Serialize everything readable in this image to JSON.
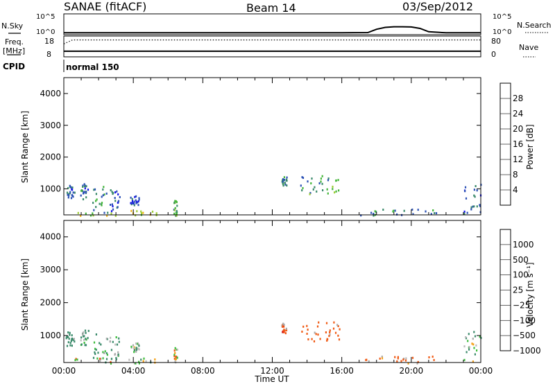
{
  "header": {
    "station": "SANAE (fitACF)",
    "beam": "Beam 14",
    "date": "03/Sep/2012"
  },
  "summary": {
    "nsky_label": "N.Sky",
    "nsearch_label": "N.Search",
    "freq_label": "Freq.",
    "freq_unit": "[MHz]",
    "nave_label": "Nave",
    "cpid_label": "CPID",
    "cpid_value": "normal 150",
    "noise_ticks": [
      "10^5",
      "10^0"
    ],
    "freq_ticks": [
      "18",
      "8"
    ],
    "nave_ticks": [
      "80",
      "0"
    ]
  },
  "colors": {
    "power": [
      "#1414e6",
      "#2a50b4",
      "#3a8a6a",
      "#44b63a",
      "#9ccc32",
      "#f0b414",
      "#f07a14",
      "#f01414"
    ],
    "velocity": [
      "#e61414",
      "#f05a14",
      "#f5a014",
      "#bbbbbb",
      "#3cbc3c",
      "#3a8a6a",
      "#2a50b4",
      "#1414e6"
    ],
    "ground_scatter": "#aaaaaa",
    "power_gap": "#888888"
  },
  "chart_data": [
    {
      "type": "line",
      "title": "N.Sky / N.Search",
      "x_range_hours": [
        0,
        24
      ],
      "y_range_log10": [
        0,
        5
      ],
      "series": [
        {
          "name": "N.Sky",
          "x": [
            0,
            2,
            4,
            6,
            8,
            10,
            12,
            14,
            16,
            17.5,
            18,
            18.5,
            19,
            19.5,
            20,
            20.5,
            21,
            22,
            24
          ],
          "y": [
            0.45,
            0.45,
            0.45,
            0.45,
            0.45,
            0.45,
            0.45,
            0.45,
            0.45,
            0.5,
            1.3,
            1.75,
            1.9,
            1.9,
            1.85,
            1.5,
            0.7,
            0.45,
            0.45
          ]
        }
      ]
    },
    {
      "type": "line",
      "title": "Freq. / Nave",
      "x_range_hours": [
        0,
        24
      ],
      "freq_range_mhz": [
        8,
        18
      ],
      "nave_range": [
        0,
        80
      ],
      "series": [
        {
          "name": "Freq.",
          "x": [
            0,
            24
          ],
          "y": [
            10.7,
            10.7
          ]
        },
        {
          "name": "Nave",
          "x": [
            0,
            0.5,
            24
          ],
          "y": [
            50,
            65,
            65
          ]
        }
      ]
    },
    {
      "type": "heatmap",
      "quantity": "Power",
      "ylabel": "Slant Range [km]",
      "colorbar_label": "Power [dB]",
      "colorbar_ticks": [
        4,
        8,
        12,
        16,
        20,
        24,
        28
      ],
      "colorbar_range": [
        0,
        32
      ],
      "y_range_km": [
        180,
        4500
      ],
      "y_ticks": [
        1000,
        2000,
        3000,
        4000
      ],
      "x_range_hours": [
        0,
        24
      ],
      "x_ticks": [
        "00:00",
        "04:00",
        "08:00",
        "12:00",
        "16:00",
        "20:00",
        "00:00"
      ],
      "regions": [
        {
          "t": [
            0.1,
            0.6
          ],
          "r": [
            700,
            1150
          ],
          "v": 6
        },
        {
          "t": [
            0.9,
            1.4
          ],
          "r": [
            700,
            1200
          ],
          "v": 8
        },
        {
          "t": [
            1.6,
            2.5
          ],
          "r": [
            250,
            1100
          ],
          "v": 10
        },
        {
          "t": [
            2.6,
            3.2
          ],
          "r": [
            300,
            1000
          ],
          "v": 6
        },
        {
          "t": [
            3.8,
            4.3
          ],
          "r": [
            500,
            800
          ],
          "v": 5
        },
        {
          "t": [
            0,
            5.5
          ],
          "r": [
            180,
            350
          ],
          "v": 18
        },
        {
          "t": [
            6.3,
            6.5
          ],
          "r": [
            180,
            700
          ],
          "v": 14
        },
        {
          "t": [
            12.5,
            12.8
          ],
          "r": [
            1100,
            1400
          ],
          "v": 9
        },
        {
          "t": [
            13.6,
            15.9
          ],
          "r": [
            850,
            1450
          ],
          "v": 12
        },
        {
          "t": [
            17,
            21.5
          ],
          "r": [
            180,
            400
          ],
          "v": 10
        },
        {
          "t": [
            23,
            24
          ],
          "r": [
            200,
            1200
          ],
          "v": 7
        }
      ]
    },
    {
      "type": "heatmap",
      "quantity": "Velocity",
      "ylabel": "Slant Range [km]",
      "xlabel": "Time UT",
      "colorbar_label": "Velocity [m s⁻¹]",
      "colorbar_ticks": [
        1000,
        500,
        100,
        25,
        -25,
        -100,
        -500,
        -1000
      ],
      "y_range_km": [
        180,
        4500
      ],
      "y_ticks": [
        1000,
        2000,
        3000,
        4000
      ],
      "x_range_hours": [
        0,
        24
      ],
      "x_ticks": [
        "00:00",
        "04:00",
        "08:00",
        "12:00",
        "16:00",
        "20:00",
        "00:00"
      ],
      "regions": [
        {
          "t": [
            0.1,
            0.6
          ],
          "r": [
            700,
            1150
          ],
          "v": 300
        },
        {
          "t": [
            0.9,
            1.4
          ],
          "r": [
            700,
            1200
          ],
          "v": 150
        },
        {
          "t": [
            1.6,
            2.5
          ],
          "r": [
            250,
            1100
          ],
          "v": 200
        },
        {
          "t": [
            2.6,
            3.2
          ],
          "r": [
            300,
            1000
          ],
          "v": 120
        },
        {
          "t": [
            3.8,
            4.3
          ],
          "r": [
            500,
            800
          ],
          "v": 80
        },
        {
          "t": [
            0,
            5.5
          ],
          "r": [
            180,
            350
          ],
          "v": 0
        },
        {
          "t": [
            6.3,
            6.5
          ],
          "r": [
            180,
            700
          ],
          "v": -60
        },
        {
          "t": [
            12.5,
            12.8
          ],
          "r": [
            1100,
            1400
          ],
          "v": -400
        },
        {
          "t": [
            13.6,
            15.9
          ],
          "r": [
            850,
            1450
          ],
          "v": -350
        },
        {
          "t": [
            17,
            21.5
          ],
          "r": [
            180,
            400
          ],
          "v": -150
        },
        {
          "t": [
            23,
            24
          ],
          "r": [
            200,
            1200
          ],
          "v": 50
        }
      ]
    }
  ]
}
